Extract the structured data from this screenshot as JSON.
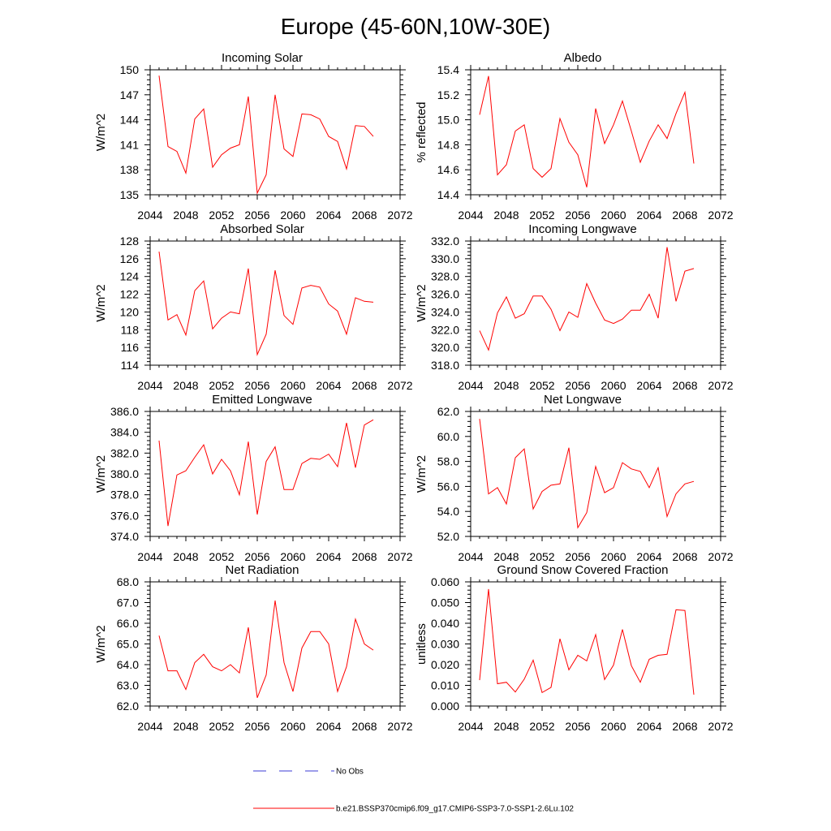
{
  "figure": {
    "title": "Europe (45-60N,10W-30E)"
  },
  "legend": {
    "obs_label": "No Obs",
    "model_label": "b.e21.BSSP370cmip6.f09_g17.CMIP6-SSP3-7.0-SSP1-2.6Lu.102",
    "obs_color": "#3b3bd6",
    "model_color": "#ff0000"
  },
  "colors": {
    "series": "#ff0000",
    "axis": "#000000"
  },
  "chart_data": [
    {
      "type": "line",
      "title": "Incoming Solar",
      "ylabel": "W/m^2",
      "xlim": [
        2044,
        2072
      ],
      "xticks": [
        "2044",
        "2048",
        "2052",
        "2056",
        "2060",
        "2064",
        "2068",
        "2072"
      ],
      "ylim": [
        135,
        150
      ],
      "yticks": [
        "135",
        "138",
        "141",
        "144",
        "147",
        "150"
      ],
      "x": [
        2045,
        2046,
        2047,
        2048,
        2049,
        2050,
        2051,
        2052,
        2053,
        2054,
        2055,
        2056,
        2057,
        2058,
        2059,
        2060,
        2061,
        2062,
        2063,
        2064,
        2065,
        2066,
        2067,
        2068,
        2069
      ],
      "series": [
        {
          "values": [
            149.3,
            140.8,
            140.2,
            137.6,
            144.1,
            145.3,
            138.3,
            139.8,
            140.6,
            141.0,
            146.8,
            135.2,
            137.4,
            147.0,
            140.5,
            139.6,
            144.7,
            144.6,
            144.1,
            142.0,
            141.4,
            138.1,
            143.3,
            143.2,
            142.0
          ]
        }
      ]
    },
    {
      "type": "line",
      "title": "Albedo",
      "ylabel": "% reflected",
      "xlim": [
        2044,
        2072
      ],
      "xticks": [
        "2044",
        "2048",
        "2052",
        "2056",
        "2060",
        "2064",
        "2068",
        "2072"
      ],
      "ylim": [
        14.4,
        15.4
      ],
      "yticks": [
        "14.4",
        "14.6",
        "14.8",
        "15.0",
        "15.2",
        "15.4"
      ],
      "x": [
        2045,
        2046,
        2047,
        2048,
        2049,
        2050,
        2051,
        2052,
        2053,
        2054,
        2055,
        2056,
        2057,
        2058,
        2059,
        2060,
        2061,
        2062,
        2063,
        2064,
        2065,
        2066,
        2067,
        2068,
        2069
      ],
      "series": [
        {
          "values": [
            15.04,
            15.35,
            14.56,
            14.64,
            14.91,
            14.96,
            14.61,
            14.54,
            14.61,
            15.01,
            14.82,
            14.72,
            14.46,
            15.09,
            14.81,
            14.96,
            15.15,
            14.91,
            14.66,
            14.83,
            14.96,
            14.85,
            15.05,
            15.22,
            14.65
          ]
        }
      ]
    },
    {
      "type": "line",
      "title": "Absorbed Solar",
      "ylabel": "W/m^2",
      "xlim": [
        2044,
        2072
      ],
      "xticks": [
        "2044",
        "2048",
        "2052",
        "2056",
        "2060",
        "2064",
        "2068",
        "2072"
      ],
      "ylim": [
        114,
        128
      ],
      "yticks": [
        "114",
        "116",
        "118",
        "120",
        "122",
        "124",
        "126",
        "128"
      ],
      "x": [
        2045,
        2046,
        2047,
        2048,
        2049,
        2050,
        2051,
        2052,
        2053,
        2054,
        2055,
        2056,
        2057,
        2058,
        2059,
        2060,
        2061,
        2062,
        2063,
        2064,
        2065,
        2066,
        2067,
        2068,
        2069
      ],
      "series": [
        {
          "values": [
            126.8,
            119.1,
            119.7,
            117.4,
            122.4,
            123.5,
            118.1,
            119.3,
            120.0,
            119.8,
            124.9,
            115.2,
            117.5,
            124.7,
            119.6,
            118.6,
            122.7,
            123.0,
            122.8,
            120.9,
            120.1,
            117.5,
            121.6,
            121.2,
            121.1
          ]
        }
      ]
    },
    {
      "type": "line",
      "title": "Incoming Longwave",
      "ylabel": "W/m^2",
      "xlim": [
        2044,
        2072
      ],
      "xticks": [
        "2044",
        "2048",
        "2052",
        "2056",
        "2060",
        "2064",
        "2068",
        "2072"
      ],
      "ylim": [
        318,
        332
      ],
      "yticks": [
        "318.0",
        "320.0",
        "322.0",
        "324.0",
        "326.0",
        "328.0",
        "330.0",
        "332.0"
      ],
      "x": [
        2045,
        2046,
        2047,
        2048,
        2049,
        2050,
        2051,
        2052,
        2053,
        2054,
        2055,
        2056,
        2057,
        2058,
        2059,
        2060,
        2061,
        2062,
        2063,
        2064,
        2065,
        2066,
        2067,
        2068,
        2069
      ],
      "series": [
        {
          "values": [
            321.9,
            319.7,
            323.9,
            325.7,
            323.3,
            323.8,
            325.8,
            325.8,
            324.3,
            321.9,
            324.0,
            323.4,
            327.2,
            325.0,
            323.1,
            322.7,
            323.2,
            324.2,
            324.2,
            326.0,
            323.3,
            331.3,
            325.2,
            328.6,
            328.9
          ]
        }
      ]
    },
    {
      "type": "line",
      "title": "Emitted Longwave",
      "ylabel": "W/m^2",
      "xlim": [
        2044,
        2072
      ],
      "xticks": [
        "2044",
        "2048",
        "2052",
        "2056",
        "2060",
        "2064",
        "2068",
        "2072"
      ],
      "ylim": [
        374,
        386
      ],
      "yticks": [
        "374.0",
        "376.0",
        "378.0",
        "380.0",
        "382.0",
        "384.0",
        "386.0"
      ],
      "x": [
        2045,
        2046,
        2047,
        2048,
        2049,
        2050,
        2051,
        2052,
        2053,
        2054,
        2055,
        2056,
        2057,
        2058,
        2059,
        2060,
        2061,
        2062,
        2063,
        2064,
        2065,
        2066,
        2067,
        2068,
        2069
      ],
      "series": [
        {
          "values": [
            383.2,
            375.0,
            379.9,
            380.3,
            381.6,
            382.8,
            380.0,
            381.4,
            380.3,
            378.0,
            383.1,
            376.1,
            381.2,
            382.6,
            378.5,
            378.5,
            381.0,
            381.5,
            381.4,
            381.9,
            380.7,
            384.9,
            380.6,
            384.7,
            385.2
          ]
        }
      ]
    },
    {
      "type": "line",
      "title": "Net Longwave",
      "ylabel": "W/m^2",
      "xlim": [
        2044,
        2072
      ],
      "xticks": [
        "2044",
        "2048",
        "2052",
        "2056",
        "2060",
        "2064",
        "2068",
        "2072"
      ],
      "ylim": [
        52,
        62
      ],
      "yticks": [
        "52.0",
        "54.0",
        "56.0",
        "58.0",
        "60.0",
        "62.0"
      ],
      "x": [
        2045,
        2046,
        2047,
        2048,
        2049,
        2050,
        2051,
        2052,
        2053,
        2054,
        2055,
        2056,
        2057,
        2058,
        2059,
        2060,
        2061,
        2062,
        2063,
        2064,
        2065,
        2066,
        2067,
        2068,
        2069
      ],
      "series": [
        {
          "values": [
            61.4,
            55.4,
            55.9,
            54.6,
            58.3,
            59.0,
            54.2,
            55.6,
            56.1,
            56.2,
            59.1,
            52.7,
            53.9,
            57.6,
            55.5,
            55.9,
            57.9,
            57.4,
            57.2,
            55.9,
            57.5,
            53.6,
            55.4,
            56.2,
            56.4
          ]
        }
      ]
    },
    {
      "type": "line",
      "title": "Net Radiation",
      "ylabel": "W/m^2",
      "xlim": [
        2044,
        2072
      ],
      "xticks": [
        "2044",
        "2048",
        "2052",
        "2056",
        "2060",
        "2064",
        "2068",
        "2072"
      ],
      "ylim": [
        62,
        68
      ],
      "yticks": [
        "62.0",
        "63.0",
        "64.0",
        "65.0",
        "66.0",
        "67.0",
        "68.0"
      ],
      "x": [
        2045,
        2046,
        2047,
        2048,
        2049,
        2050,
        2051,
        2052,
        2053,
        2054,
        2055,
        2056,
        2057,
        2058,
        2059,
        2060,
        2061,
        2062,
        2063,
        2064,
        2065,
        2066,
        2067,
        2068,
        2069
      ],
      "series": [
        {
          "values": [
            65.4,
            63.7,
            63.7,
            62.8,
            64.1,
            64.5,
            63.9,
            63.7,
            64.0,
            63.6,
            65.8,
            62.4,
            63.5,
            67.1,
            64.1,
            62.7,
            64.8,
            65.6,
            65.6,
            65.0,
            62.7,
            63.9,
            66.2,
            65.0,
            64.7
          ]
        }
      ]
    },
    {
      "type": "line",
      "title": "Ground Snow Covered Fraction",
      "ylabel": "unitless",
      "xlim": [
        2044,
        2072
      ],
      "xticks": [
        "2044",
        "2048",
        "2052",
        "2056",
        "2060",
        "2064",
        "2068",
        "2072"
      ],
      "ylim": [
        0,
        0.06
      ],
      "yticks": [
        "0.000",
        "0.010",
        "0.020",
        "0.030",
        "0.040",
        "0.050",
        "0.060"
      ],
      "x": [
        2045,
        2046,
        2047,
        2048,
        2049,
        2050,
        2051,
        2052,
        2053,
        2054,
        2055,
        2056,
        2057,
        2058,
        2059,
        2060,
        2061,
        2062,
        2063,
        2064,
        2065,
        2066,
        2067,
        2068,
        2069
      ],
      "series": [
        {
          "values": [
            0.0125,
            0.0565,
            0.0108,
            0.0115,
            0.0068,
            0.013,
            0.0222,
            0.0065,
            0.009,
            0.0325,
            0.0175,
            0.0245,
            0.0218,
            0.0345,
            0.0128,
            0.0198,
            0.037,
            0.0195,
            0.0115,
            0.0226,
            0.0245,
            0.025,
            0.0465,
            0.0462,
            0.0055
          ]
        }
      ]
    }
  ]
}
